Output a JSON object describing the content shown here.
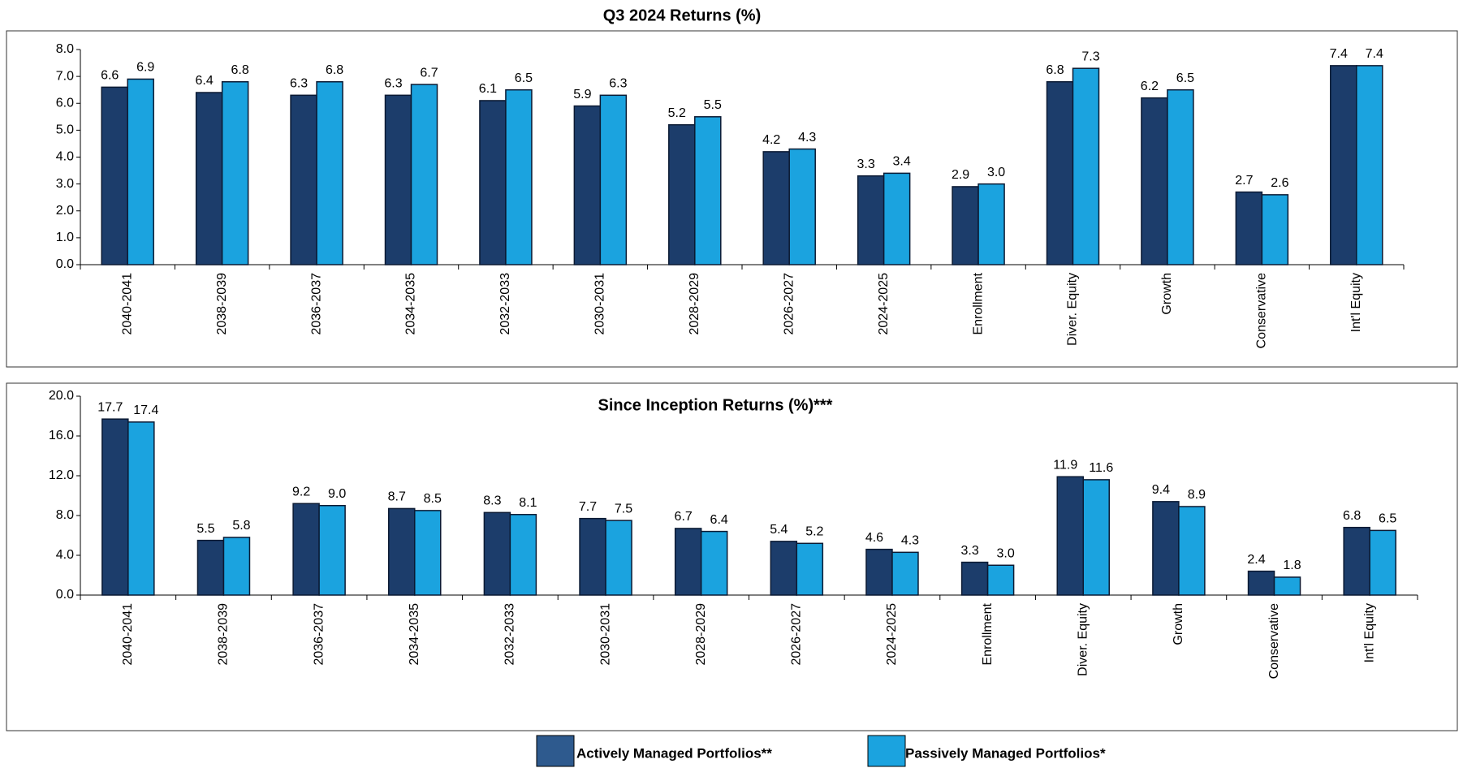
{
  "chart_data": [
    {
      "type": "bar",
      "title": "Q3 2024 Returns (%)",
      "categories": [
        "2040-2041",
        "2038-2039",
        "2036-2037",
        "2034-2035",
        "2032-2033",
        "2030-2031",
        "2028-2029",
        "2026-2027",
        "2024-2025",
        "Enrollment",
        "Diver. Equity",
        "Growth",
        "Conservative",
        "Int'l Equity"
      ],
      "series": [
        {
          "name": "Actively Managed Portfolios**",
          "color": "#1c3d6b",
          "values": [
            6.6,
            6.4,
            6.3,
            6.3,
            6.1,
            5.9,
            5.2,
            4.2,
            3.3,
            2.9,
            6.8,
            6.2,
            2.7,
            7.4
          ],
          "value_labels": [
            "6.6",
            "6.4",
            "6.3",
            "6.3",
            "6.1",
            "5.9",
            "5.2",
            "4.2",
            "3.3",
            "2.9",
            "6.8",
            "6.2",
            "2.7",
            "7.4"
          ]
        },
        {
          "name": "Passively Managed Portfolios*",
          "color": "#1ba3df",
          "values": [
            6.9,
            6.8,
            6.8,
            6.7,
            6.5,
            6.3,
            5.5,
            4.3,
            3.4,
            3.0,
            7.3,
            6.5,
            2.6,
            7.4
          ],
          "value_labels": [
            "6.9",
            "6.8",
            "6.8",
            "6.7",
            "6.5",
            "6.3",
            "5.5",
            "4.3",
            "3.4",
            "3.0",
            "7.3",
            "6.5",
            "2.6",
            "7.4"
          ]
        }
      ],
      "ylim": [
        0,
        8
      ],
      "yticks": [
        {
          "value": 0,
          "label": "0.0"
        },
        {
          "value": 1,
          "label": "1.0"
        },
        {
          "value": 2,
          "label": "2.0"
        },
        {
          "value": 3,
          "label": "3.0"
        },
        {
          "value": 4,
          "label": "4.0"
        },
        {
          "value": 5,
          "label": "5.0"
        },
        {
          "value": 6,
          "label": "6.0"
        },
        {
          "value": 7,
          "label": "7.0"
        },
        {
          "value": 8,
          "label": "8.0"
        }
      ]
    },
    {
      "type": "bar",
      "title": "Since Inception Returns (%)***",
      "categories": [
        "2040-2041",
        "2038-2039",
        "2036-2037",
        "2034-2035",
        "2032-2033",
        "2030-2031",
        "2028-2029",
        "2026-2027",
        "2024-2025",
        "Enrollment",
        "Diver. Equity",
        "Growth",
        "Conservative",
        "Int'l Equity"
      ],
      "series": [
        {
          "color": "#1c3d6b",
          "values": [
            17.7,
            5.5,
            9.2,
            8.7,
            8.3,
            7.7,
            6.7,
            5.4,
            4.6,
            3.3,
            11.9,
            9.4,
            2.4,
            6.8
          ],
          "value_labels": [
            "17.7",
            "5.5",
            "9.2",
            "8.7",
            "8.3",
            "7.7",
            "6.7",
            "5.4",
            "4.6",
            "3.3",
            "11.9",
            "9.4",
            "2.4",
            "6.8"
          ]
        },
        {
          "color": "#1ba3df",
          "values": [
            17.4,
            5.8,
            9.0,
            8.5,
            8.1,
            7.5,
            6.4,
            5.2,
            4.3,
            3.0,
            11.6,
            8.9,
            1.8,
            6.5
          ],
          "value_labels": [
            "17.4",
            "5.8",
            "9.0",
            "8.5",
            "8.1",
            "7.5",
            "6.4",
            "5.2",
            "4.3",
            "3.0",
            "11.6",
            "8.9",
            "1.8",
            "6.5"
          ]
        }
      ],
      "ylim": [
        0,
        20
      ],
      "yticks": [
        {
          "value": 0,
          "label": "0.0"
        },
        {
          "value": 4,
          "label": "4.0"
        },
        {
          "value": 8,
          "label": "8.0"
        },
        {
          "value": 12,
          "label": "12.0"
        },
        {
          "value": 16,
          "label": "16.0"
        },
        {
          "value": 20,
          "label": "20.0"
        }
      ]
    }
  ]
}
